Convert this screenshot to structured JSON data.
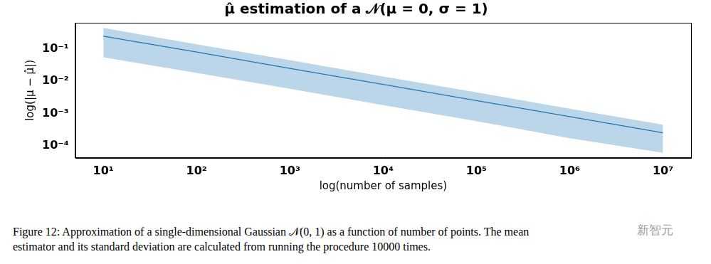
{
  "chart_data": {
    "type": "line",
    "title": "μ̂ estimation of a 𝒩(μ = 0, σ = 1)",
    "x_label": "log(number of samples)",
    "y_label": "log(|μ − μ̂|)",
    "log": true,
    "grid": false,
    "x": [
      10,
      100,
      1000,
      10000,
      100000,
      1000000,
      10000000
    ],
    "values": [
      0.25,
      0.08,
      0.025,
      0.008,
      0.0025,
      0.0008,
      0.00025
    ],
    "band_upper": [
      0.45,
      0.14,
      0.045,
      0.014,
      0.0045,
      0.0014,
      0.00045
    ],
    "band_lower": [
      0.055,
      0.018,
      0.0058,
      0.0018,
      0.00058,
      0.00017,
      6e-05
    ],
    "color": "#1f77b4",
    "xlim": [
      5,
      20000000
    ],
    "xticks": [
      {
        "value": 10,
        "label": "10¹"
      },
      {
        "value": 100,
        "label": "10²"
      },
      {
        "value": 1000,
        "label": "10³"
      },
      {
        "value": 10000,
        "label": "10⁴"
      },
      {
        "value": 100000,
        "label": "10⁵"
      },
      {
        "value": 1000000,
        "label": "10⁶"
      },
      {
        "value": 10000000,
        "label": "10⁷"
      }
    ],
    "ylim": [
      4.2e-05,
      0.65
    ],
    "yticks": [
      {
        "value": 0.1,
        "label": "10⁻¹"
      },
      {
        "value": 0.01,
        "label": "10⁻²"
      },
      {
        "value": 0.001,
        "label": "10⁻³"
      },
      {
        "value": 0.0001,
        "label": "10⁻⁴"
      }
    ],
    "caption": [
      "Figure 12: Approximation of a single-dimensional Gaussian 𝒩(0, 1) as a function of number of points. The mean",
      "estimator and its standard deviation are calculated from running the procedure 10000 times."
    ],
    "watermark": "新智元"
  }
}
